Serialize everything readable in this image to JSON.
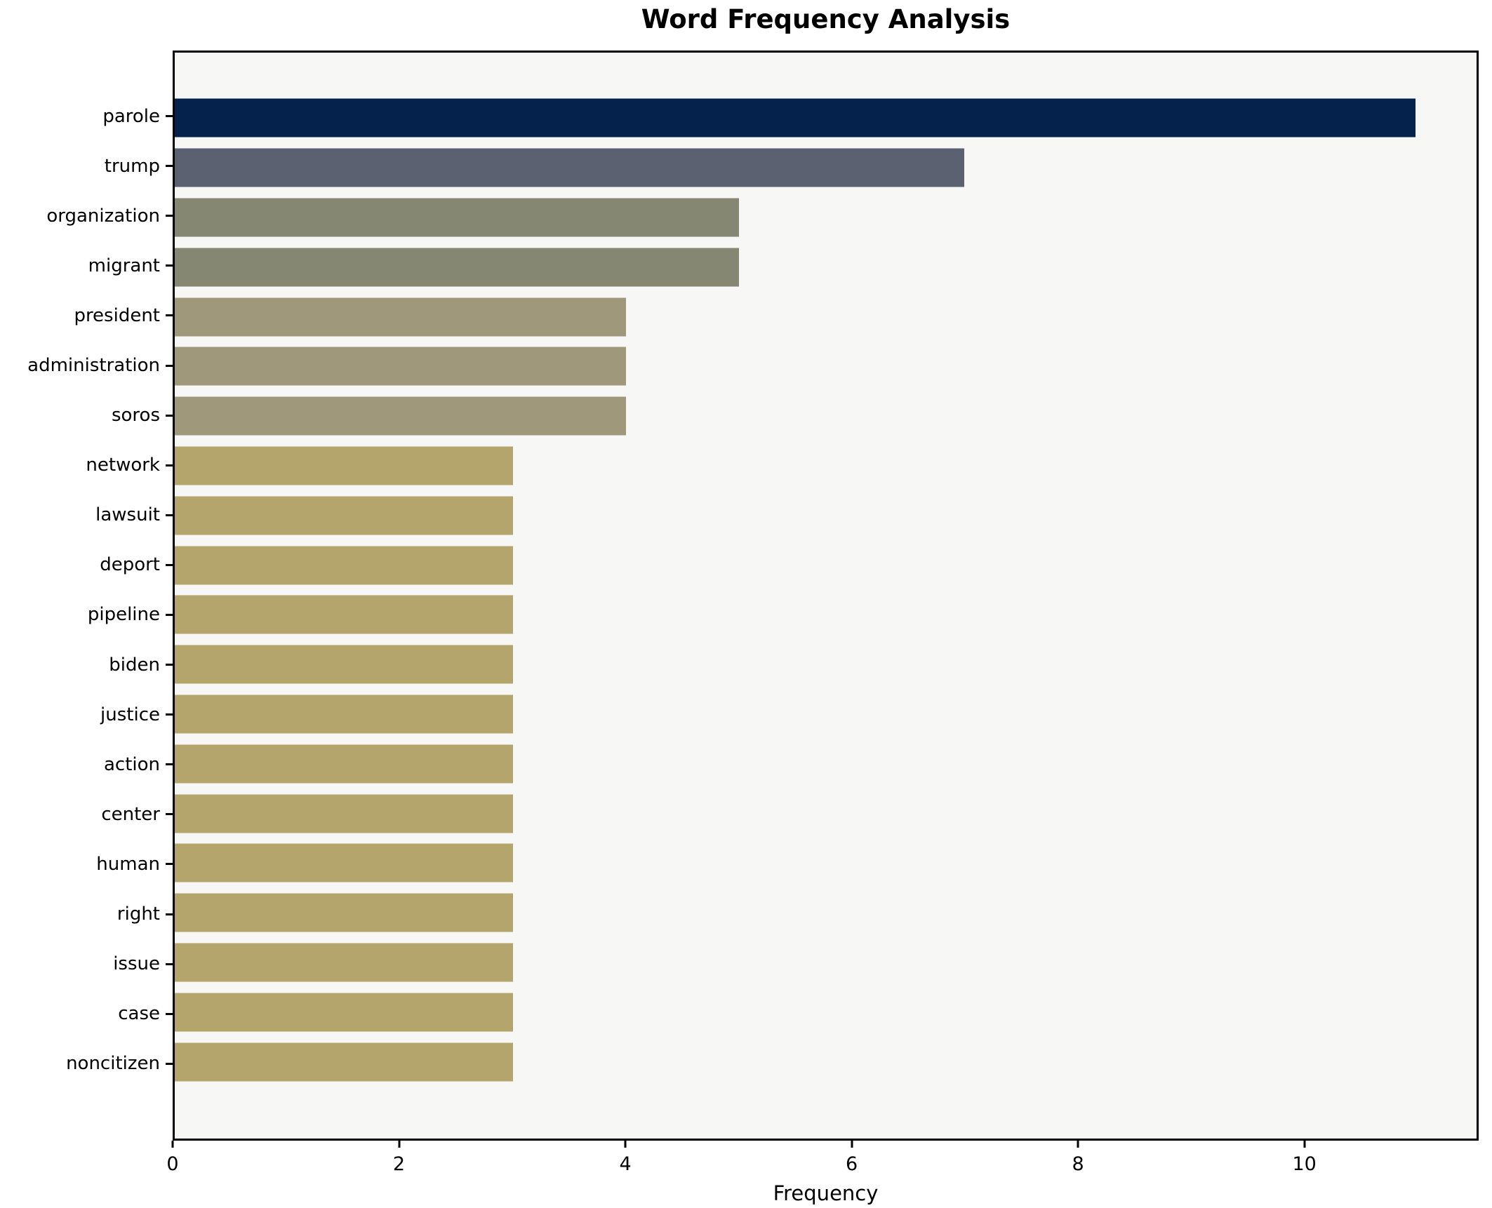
{
  "chart_data": {
    "type": "bar",
    "orientation": "horizontal",
    "title": "Word Frequency Analysis",
    "xlabel": "Frequency",
    "ylabel": "",
    "categories": [
      "parole",
      "trump",
      "organization",
      "migrant",
      "president",
      "administration",
      "soros",
      "network",
      "lawsuit",
      "deport",
      "pipeline",
      "biden",
      "justice",
      "action",
      "center",
      "human",
      "right",
      "issue",
      "case",
      "noncitizen"
    ],
    "values": [
      11,
      7,
      5,
      5,
      4,
      4,
      4,
      3,
      3,
      3,
      3,
      3,
      3,
      3,
      3,
      3,
      3,
      3,
      3,
      3
    ],
    "bar_colors": [
      "#05224d",
      "#5b6170",
      "#868773",
      "#868773",
      "#a0987a",
      "#a0987a",
      "#a0987a",
      "#b3a56c",
      "#b3a56c",
      "#b3a56c",
      "#b3a56c",
      "#b3a56c",
      "#b3a56c",
      "#b3a56c",
      "#b3a56c",
      "#b3a56c",
      "#b3a56c",
      "#b3a56c",
      "#b3a56c",
      "#b3a56c"
    ],
    "xlim": [
      0,
      11.54
    ],
    "xticks": [
      "0",
      "2",
      "4",
      "6",
      "8",
      "10"
    ],
    "grid": false,
    "legend_position": "none",
    "axes_background": "#f7f7f5",
    "spine_color": "#000000",
    "bar_height_fraction": 0.8
  }
}
